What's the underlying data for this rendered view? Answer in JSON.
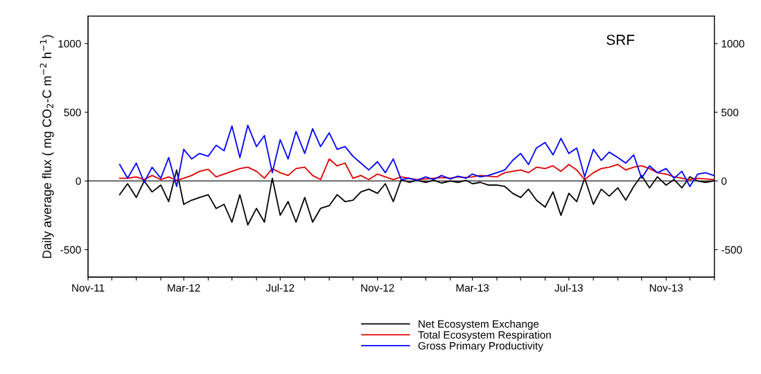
{
  "chart_data": {
    "type": "line",
    "ylabel": "Daily average flux ( mg CO$_{2}$-C m$^{−2}$ h$^{−1}$)",
    "annotations": [
      "SRF"
    ],
    "x": [
      "2011-12-11",
      "2011-12-21",
      "2012-01-01",
      "2012-01-11",
      "2012-01-21",
      "2012-02-01",
      "2012-02-11",
      "2012-02-21",
      "2012-03-01",
      "2012-03-11",
      "2012-03-21",
      "2012-04-01",
      "2012-04-11",
      "2012-04-21",
      "2012-05-01",
      "2012-05-11",
      "2012-05-21",
      "2012-06-01",
      "2012-06-11",
      "2012-06-21",
      "2012-07-01",
      "2012-07-11",
      "2012-07-21",
      "2012-08-01",
      "2012-08-11",
      "2012-08-21",
      "2012-09-01",
      "2012-09-11",
      "2012-09-21",
      "2012-10-01",
      "2012-10-11",
      "2012-10-21",
      "2012-11-01",
      "2012-11-11",
      "2012-11-21",
      "2012-12-01",
      "2012-12-11",
      "2012-12-21",
      "2013-01-01",
      "2013-01-11",
      "2013-01-21",
      "2013-02-01",
      "2013-02-11",
      "2013-02-21",
      "2013-03-01",
      "2013-03-11",
      "2013-03-21",
      "2013-04-01",
      "2013-04-11",
      "2013-04-21",
      "2013-05-01",
      "2013-05-11",
      "2013-05-21",
      "2013-06-01",
      "2013-06-11",
      "2013-06-21",
      "2013-07-01",
      "2013-07-11",
      "2013-07-21",
      "2013-08-01",
      "2013-08-11",
      "2013-08-21",
      "2013-09-01",
      "2013-09-11",
      "2013-09-21",
      "2013-10-01",
      "2013-10-11",
      "2013-10-21",
      "2013-11-01",
      "2013-11-11",
      "2013-11-21",
      "2013-12-01",
      "2013-12-11",
      "2013-12-21",
      "2013-12-31"
    ],
    "series": [
      {
        "name": "Net Ecosystem Exchange",
        "color": "#000000",
        "values": [
          -100,
          -20,
          -120,
          0,
          -80,
          -30,
          -150,
          80,
          -170,
          -140,
          -120,
          -100,
          -200,
          -170,
          -300,
          -100,
          -320,
          -200,
          -300,
          20,
          -250,
          -150,
          -300,
          -120,
          -300,
          -200,
          -180,
          -100,
          -150,
          -140,
          -80,
          -60,
          -90,
          -20,
          -150,
          10,
          -10,
          5,
          -10,
          5,
          -15,
          0,
          -10,
          5,
          -20,
          -10,
          -30,
          -30,
          -40,
          -90,
          -120,
          -60,
          -140,
          -190,
          -80,
          -250,
          -90,
          -150,
          20,
          -170,
          -60,
          -110,
          -50,
          -140,
          -40,
          40,
          -50,
          30,
          -30,
          10,
          -50,
          30,
          0,
          -10,
          0
        ]
      },
      {
        "name": "Total Ecosystem Respiration",
        "color": "#e00000",
        "values": [
          20,
          20,
          30,
          10,
          40,
          10,
          30,
          5,
          20,
          40,
          70,
          85,
          30,
          50,
          70,
          90,
          100,
          70,
          20,
          90,
          60,
          40,
          90,
          100,
          40,
          10,
          160,
          110,
          130,
          20,
          40,
          10,
          50,
          30,
          10,
          30,
          20,
          10,
          15,
          20,
          25,
          20,
          30,
          25,
          30,
          40,
          35,
          30,
          60,
          70,
          80,
          60,
          100,
          90,
          110,
          70,
          120,
          80,
          10,
          60,
          90,
          100,
          120,
          80,
          100,
          110,
          90,
          60,
          50,
          30,
          20,
          10,
          20,
          15,
          10
        ]
      },
      {
        "name": "Gross Primary Productivity",
        "color": "#0000ff",
        "values": [
          120,
          20,
          130,
          -10,
          100,
          20,
          170,
          -40,
          230,
          160,
          200,
          180,
          260,
          220,
          400,
          170,
          405,
          250,
          330,
          60,
          300,
          160,
          360,
          200,
          380,
          250,
          350,
          230,
          250,
          180,
          130,
          80,
          140,
          60,
          160,
          10,
          20,
          5,
          30,
          10,
          40,
          15,
          35,
          20,
          50,
          30,
          40,
          60,
          80,
          150,
          200,
          120,
          240,
          280,
          190,
          310,
          200,
          240,
          30,
          230,
          150,
          210,
          170,
          130,
          190,
          20,
          110,
          60,
          90,
          20,
          70,
          -40,
          50,
          60,
          40
        ]
      }
    ],
    "xlim": [
      "2011-11-01",
      "2014-01-01"
    ],
    "xticks": [
      {
        "value": "2011-11-01",
        "label": "Nov-11"
      },
      {
        "value": "2011-12-01",
        "label": null
      },
      {
        "value": "2012-01-01",
        "label": null
      },
      {
        "value": "2012-02-01",
        "label": null
      },
      {
        "value": "2012-03-01",
        "label": "Mar-12"
      },
      {
        "value": "2012-04-01",
        "label": null
      },
      {
        "value": "2012-05-01",
        "label": null
      },
      {
        "value": "2012-06-01",
        "label": null
      },
      {
        "value": "2012-07-01",
        "label": "Jul-12"
      },
      {
        "value": "2012-08-01",
        "label": null
      },
      {
        "value": "2012-09-01",
        "label": null
      },
      {
        "value": "2012-10-01",
        "label": null
      },
      {
        "value": "2012-11-01",
        "label": "Nov-12"
      },
      {
        "value": "2012-12-01",
        "label": null
      },
      {
        "value": "2013-01-01",
        "label": null
      },
      {
        "value": "2013-02-01",
        "label": null
      },
      {
        "value": "2013-03-01",
        "label": "Mar-13"
      },
      {
        "value": "2013-04-01",
        "label": null
      },
      {
        "value": "2013-05-01",
        "label": null
      },
      {
        "value": "2013-06-01",
        "label": null
      },
      {
        "value": "2013-07-01",
        "label": "Jul-13"
      },
      {
        "value": "2013-08-01",
        "label": null
      },
      {
        "value": "2013-09-01",
        "label": null
      },
      {
        "value": "2013-10-01",
        "label": null
      },
      {
        "value": "2013-11-01",
        "label": "Nov-13"
      },
      {
        "value": "2013-12-01",
        "label": null
      },
      {
        "value": "2014-01-01",
        "label": null
      }
    ],
    "ylim": [
      -700,
      1200
    ],
    "yticks": [
      -500,
      0,
      500,
      1000
    ],
    "y2lim": [
      -700,
      1200
    ],
    "y2ticks": [
      -500,
      0,
      500,
      1000
    ],
    "ref_lines": [
      {
        "axis": "y",
        "value": 0,
        "color": "#404040"
      }
    ],
    "grid": false,
    "legend": "bottom",
    "marker": "none",
    "line_style": "solid"
  }
}
